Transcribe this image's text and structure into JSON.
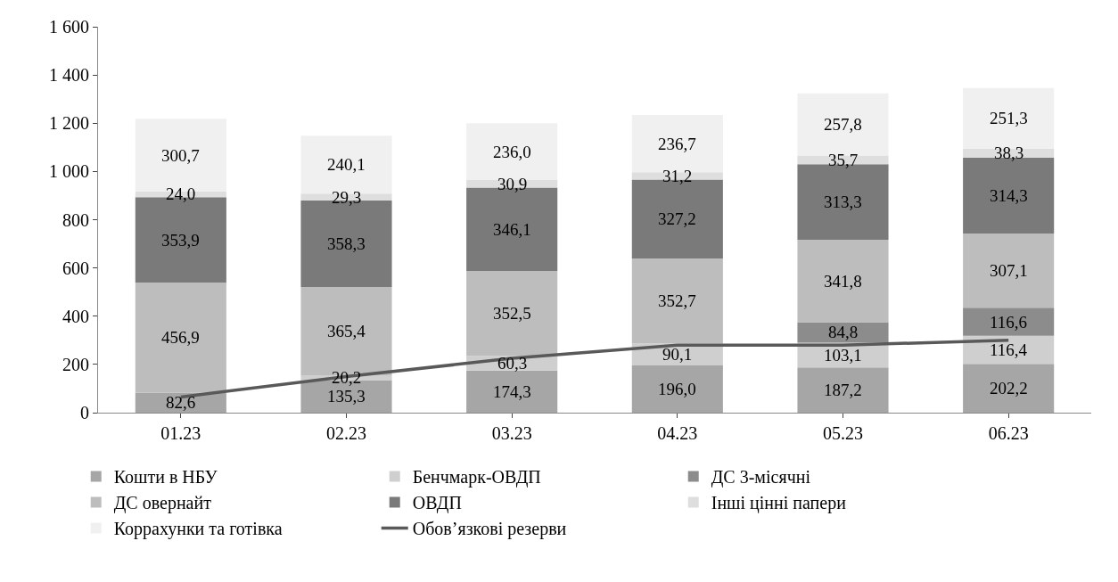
{
  "chart_data": {
    "type": "bar",
    "stacked": true,
    "categories": [
      "01.23",
      "02.23",
      "03.23",
      "04.23",
      "05.23",
      "06.23"
    ],
    "ylim": [
      0,
      1600
    ],
    "yticks": [
      0,
      200,
      400,
      600,
      800,
      {
        "value": 1000,
        "label": "1 000"
      },
      {
        "value": 1200,
        "label": "1 200"
      },
      {
        "value": 1400,
        "label": "1 400"
      },
      {
        "value": 1600,
        "label": "1 600"
      }
    ],
    "legend": "bottom",
    "series": [
      {
        "name": "Кошти в НБУ",
        "color": "#a6a6a6",
        "values": [
          82.6,
          135.3,
          174.3,
          196.0,
          187.2,
          202.2
        ],
        "value_labels": [
          "82,6",
          "135,3",
          "174,3",
          "196,0",
          "187,2",
          "202,2"
        ]
      },
      {
        "name": "Бенчмарк-ОВДП",
        "color": "#cfcfcf",
        "values": [
          null,
          20.2,
          60.3,
          90.1,
          103.1,
          116.4
        ],
        "value_labels": [
          null,
          "20,2",
          "60,3",
          "90,1",
          "103,1",
          "116,4"
        ]
      },
      {
        "name": "ДС 3-місячні",
        "color": "#8c8c8c",
        "values": [
          null,
          null,
          null,
          null,
          84.8,
          116.6
        ],
        "value_labels": [
          null,
          null,
          null,
          null,
          "84,8",
          "116,6"
        ]
      },
      {
        "name": "ДС овернайт",
        "color": "#bdbdbd",
        "values": [
          456.9,
          365.4,
          352.5,
          352.7,
          341.8,
          307.1
        ],
        "value_labels": [
          "456,9",
          "365,4",
          "352,5",
          "352,7",
          "341,8",
          "307,1"
        ]
      },
      {
        "name": "ОВДП",
        "color": "#7a7a7a",
        "values": [
          353.9,
          358.3,
          346.1,
          327.2,
          313.3,
          314.3
        ],
        "value_labels": [
          "353,9",
          "358,3",
          "346,1",
          "327,2",
          "313,3",
          "314,3"
        ]
      },
      {
        "name": "Інші цінні папери",
        "color": "#dedede",
        "values": [
          24.0,
          29.3,
          30.9,
          31.2,
          35.7,
          38.3
        ],
        "value_labels": [
          "24,0",
          "29,3",
          "30,9",
          "31,2",
          "35,7",
          "38,3"
        ]
      },
      {
        "name": "Коррахунки та готівка",
        "color": "#f0f0f0",
        "values": [
          300.7,
          240.1,
          236.0,
          236.7,
          257.8,
          251.3
        ],
        "value_labels": [
          "300,7",
          "240,1",
          "236,0",
          "236,7",
          "257,8",
          "251,3"
        ]
      },
      {
        "name": "Обов’язкові резерви",
        "type": "line",
        "color": "#595959",
        "marker": "none",
        "line_style": "solid",
        "values": [
          65,
          150,
          225,
          280,
          280,
          300
        ]
      }
    ]
  }
}
